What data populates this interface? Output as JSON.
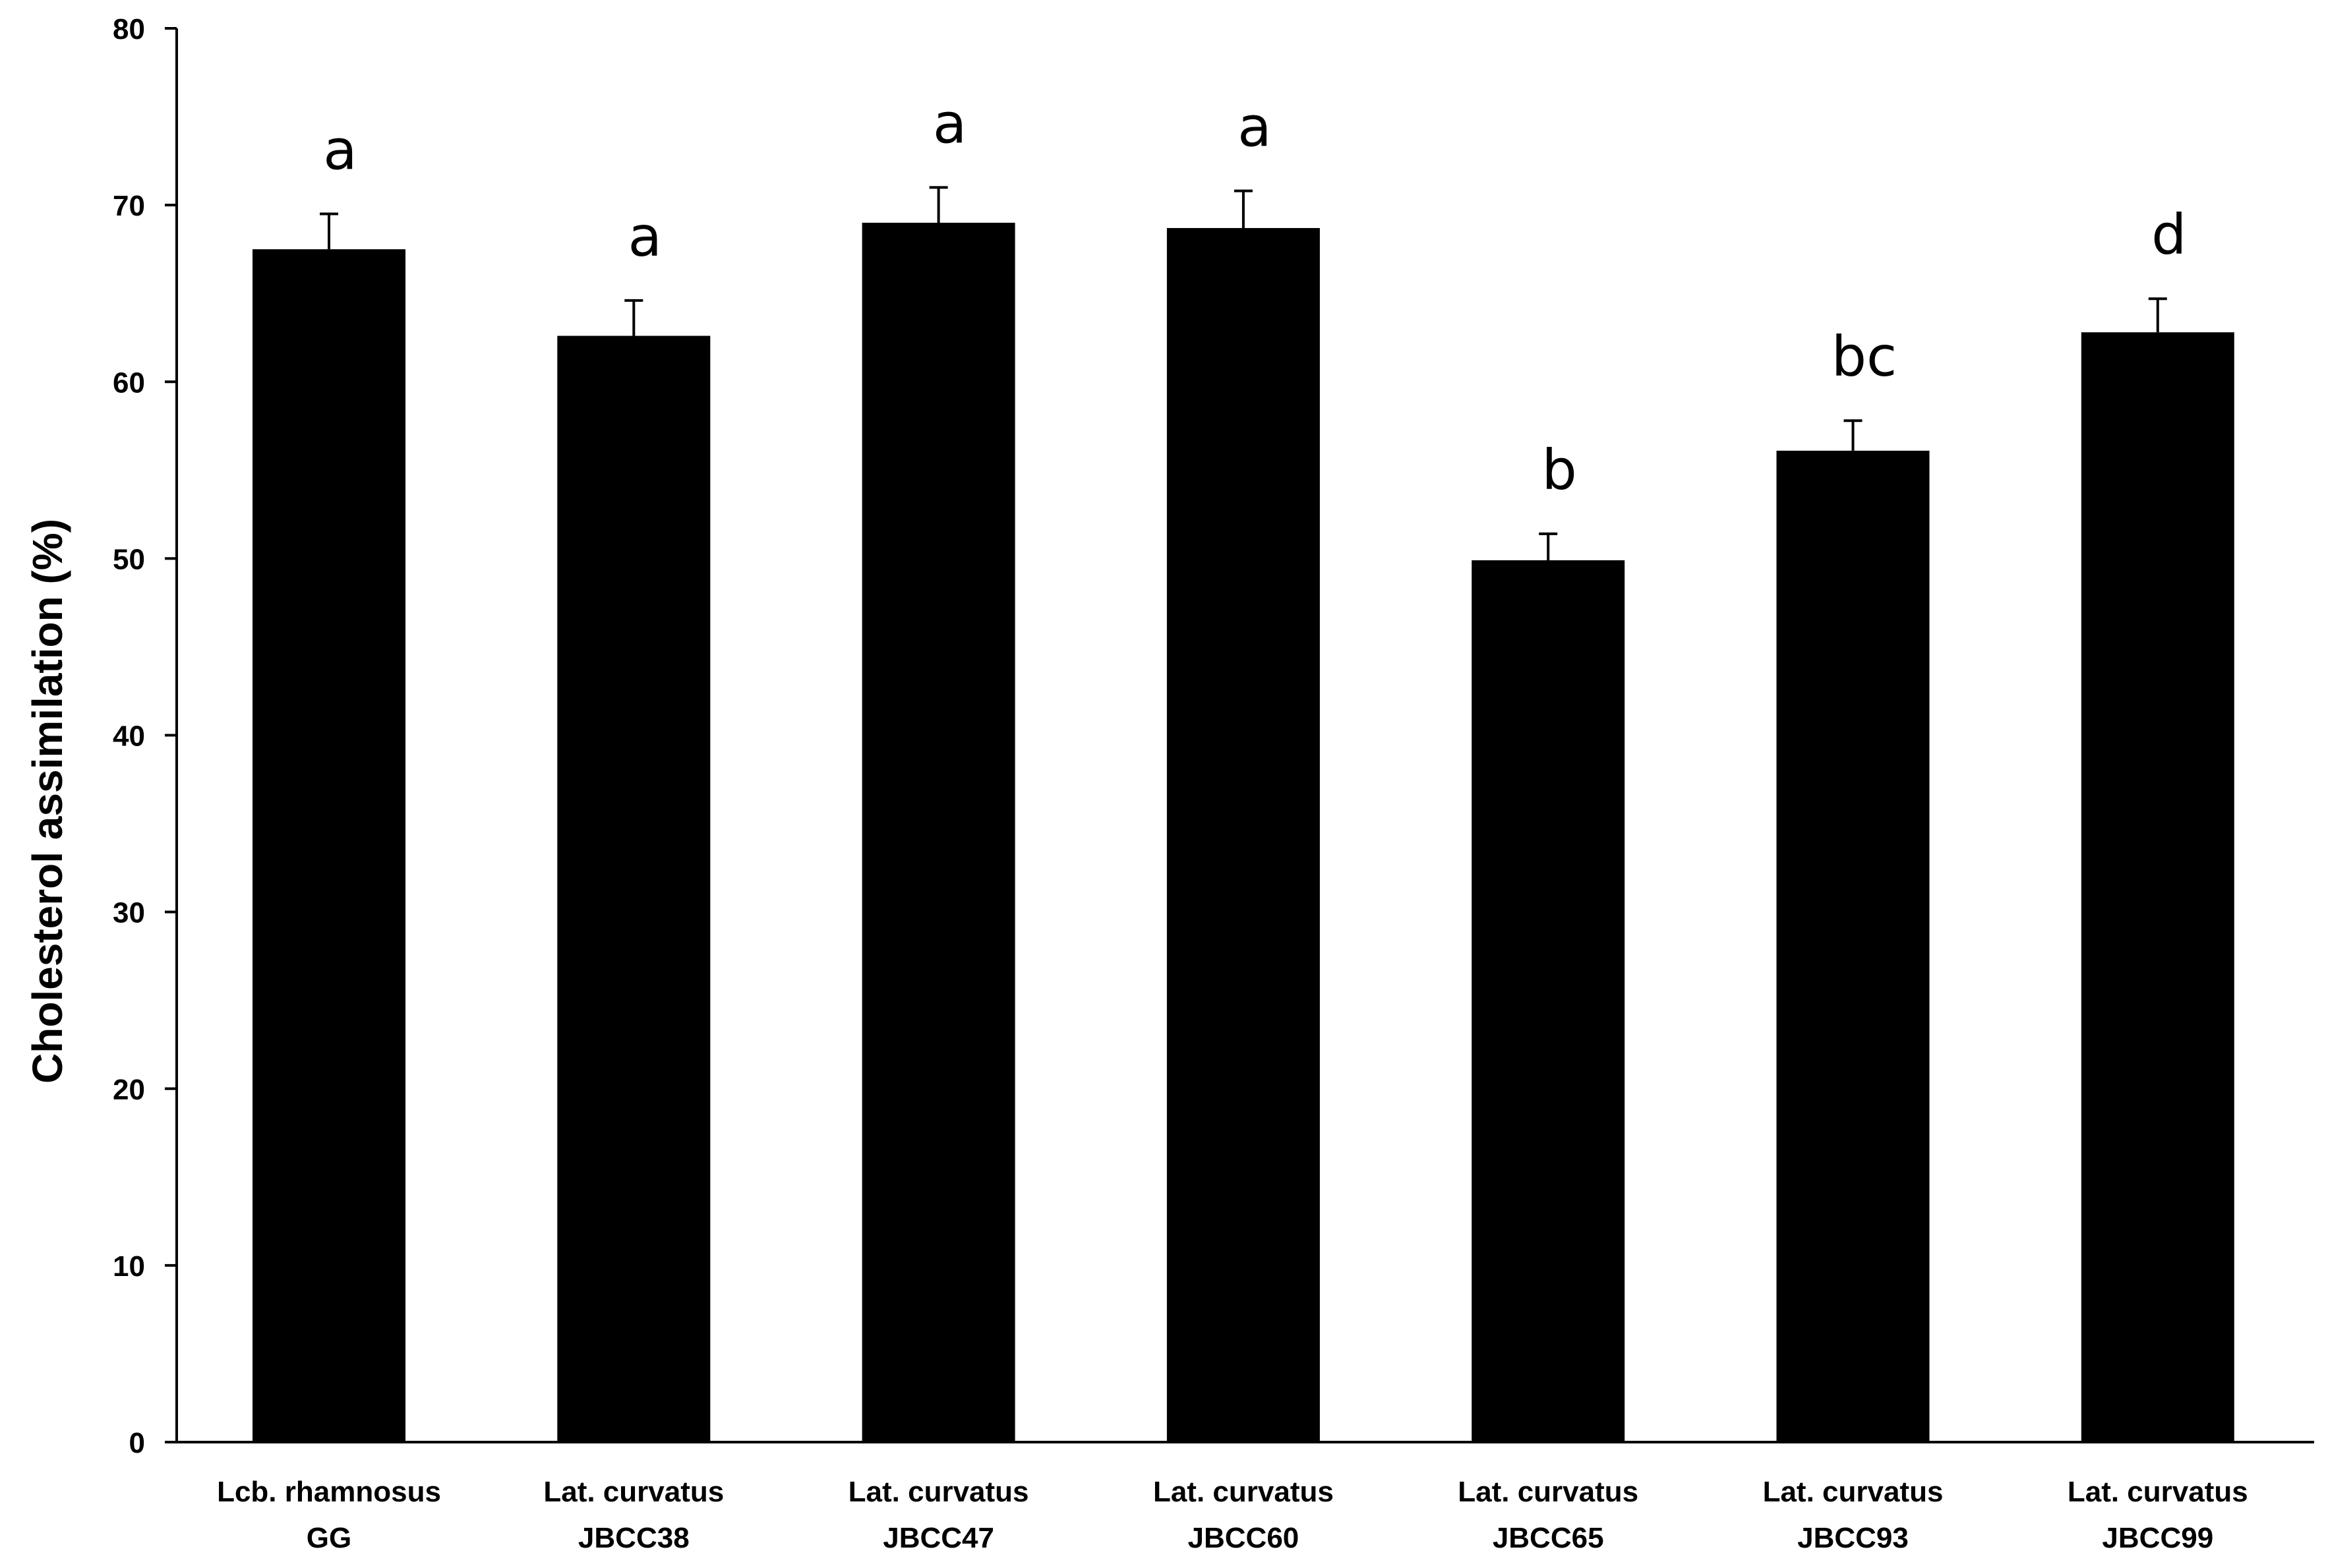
{
  "chart_data": {
    "type": "bar",
    "title": "",
    "xlabel": "",
    "ylabel": "Cholesterol assimilation (%)",
    "ylim": [
      0,
      80
    ],
    "yticks": [
      0,
      10,
      20,
      30,
      40,
      50,
      60,
      70,
      80
    ],
    "grid": false,
    "legend": "none",
    "bar_color": "#000000",
    "categories": [
      [
        "Lcb. rhamnosus",
        "GG"
      ],
      [
        "Lat. curvatus",
        "JBCC38"
      ],
      [
        "Lat. curvatus",
        "JBCC47"
      ],
      [
        "Lat. curvatus",
        "JBCC60"
      ],
      [
        "Lat. curvatus",
        "JBCC65"
      ],
      [
        "Lat. curvatus",
        "JBCC93"
      ],
      [
        "Lat. curvatus",
        "JBCC99"
      ]
    ],
    "values": [
      67.5,
      62.6,
      69.0,
      68.7,
      49.9,
      56.1,
      62.8
    ],
    "errors": [
      2.0,
      2.0,
      2.0,
      2.1,
      1.5,
      1.7,
      1.9
    ],
    "significance_labels": [
      "a",
      "a",
      "a",
      "a",
      "b",
      "bc",
      "d"
    ]
  }
}
